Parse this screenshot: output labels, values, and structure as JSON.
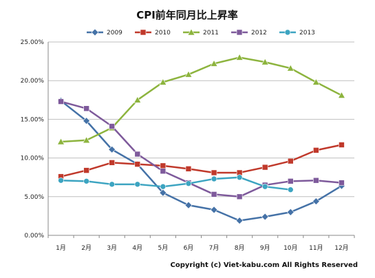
{
  "chart_data": {
    "type": "line",
    "title": "CPI前年同月比上昇率",
    "xlabel": "",
    "ylabel": "",
    "categories": [
      "1月",
      "2月",
      "3月",
      "4月",
      "5月",
      "6月",
      "7月",
      "8月",
      "9月",
      "10月",
      "11月",
      "12月"
    ],
    "ylim": [
      0,
      25
    ],
    "yticks": [
      "0.00%",
      "5.00%",
      "10.00%",
      "15.00%",
      "20.00%",
      "25.00%"
    ],
    "grid": true,
    "legend": "top",
    "series": [
      {
        "name": "2009",
        "color": "#4572A7",
        "marker": "diamond",
        "values": [
          17.4,
          14.8,
          11.1,
          9.2,
          5.5,
          3.9,
          3.3,
          1.9,
          2.4,
          3.0,
          4.4,
          6.4
        ]
      },
      {
        "name": "2010",
        "color": "#C0392B",
        "marker": "square",
        "values": [
          7.6,
          8.4,
          9.4,
          9.2,
          9.0,
          8.6,
          8.1,
          8.1,
          8.8,
          9.6,
          11.0,
          11.7
        ]
      },
      {
        "name": "2011",
        "color": "#8DB43E",
        "marker": "triangle",
        "values": [
          12.1,
          12.3,
          13.9,
          17.5,
          19.8,
          20.8,
          22.2,
          23.0,
          22.4,
          21.6,
          19.8,
          18.1
        ]
      },
      {
        "name": "2012",
        "color": "#7E5A9B",
        "marker": "square",
        "values": [
          17.3,
          16.4,
          14.1,
          10.5,
          8.3,
          6.8,
          5.3,
          5.0,
          6.5,
          7.0,
          7.1,
          6.8
        ]
      },
      {
        "name": "2013",
        "color": "#3CA4C1",
        "marker": "circle",
        "values": [
          7.1,
          7.0,
          6.6,
          6.6,
          6.3,
          6.7,
          7.3,
          7.5,
          6.3,
          5.9,
          null,
          null
        ]
      }
    ]
  },
  "footer": {
    "copyright": "Copyright (c) Viet-kabu.com All Rights Reserved"
  }
}
